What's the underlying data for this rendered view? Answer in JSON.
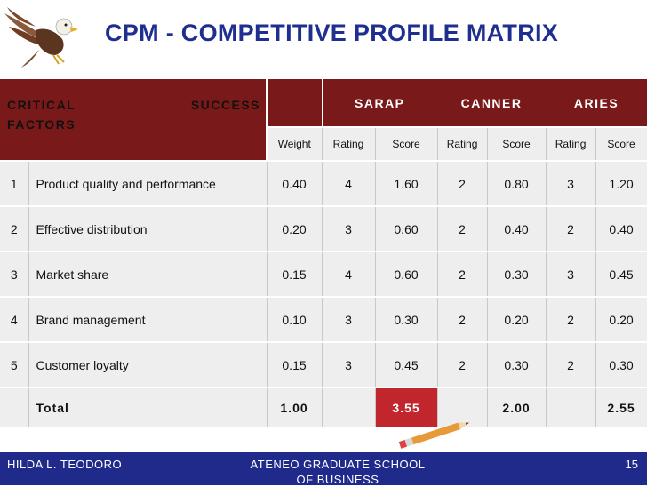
{
  "title": "CPM - COMPETITIVE PROFILE MATRIX",
  "header": {
    "critical_line1_a": "CRITICAL",
    "critical_line1_b": "SUCCESS",
    "critical_line2": "FACTORS",
    "companies": [
      "SARAP",
      "CANNER",
      "ARIES"
    ],
    "weight": "Weight",
    "rating": "Rating",
    "score": "Score"
  },
  "rows": [
    {
      "no": "1",
      "factor": "Product quality and performance",
      "weight": "0.40",
      "sarap_r": "4",
      "sarap_s": "1.60",
      "canner_r": "2",
      "canner_s": "0.80",
      "aries_r": "3",
      "aries_s": "1.20"
    },
    {
      "no": "2",
      "factor": "Effective distribution",
      "weight": "0.20",
      "sarap_r": "3",
      "sarap_s": "0.60",
      "canner_r": "2",
      "canner_s": "0.40",
      "aries_r": "2",
      "aries_s": "0.40"
    },
    {
      "no": "3",
      "factor": "Market share",
      "weight": "0.15",
      "sarap_r": "4",
      "sarap_s": "0.60",
      "canner_r": "2",
      "canner_s": "0.30",
      "aries_r": "3",
      "aries_s": "0.45"
    },
    {
      "no": "4",
      "factor": "Brand management",
      "weight": "0.10",
      "sarap_r": "3",
      "sarap_s": "0.30",
      "canner_r": "2",
      "canner_s": "0.20",
      "aries_r": "2",
      "aries_s": "0.20"
    },
    {
      "no": "5",
      "factor": "Customer loyalty",
      "weight": "0.15",
      "sarap_r": "3",
      "sarap_s": "0.45",
      "canner_r": "2",
      "canner_s": "0.30",
      "aries_r": "2",
      "aries_s": "0.30"
    }
  ],
  "total": {
    "label": "Total",
    "weight": "1.00",
    "sarap": "3.55",
    "canner": "2.00",
    "aries": "2.55"
  },
  "footer": {
    "left": "HILDA L. TEODORO",
    "mid_line1": "ATENEO GRADUATE SCHOOL",
    "mid_line2": "OF BUSINESS",
    "page": "15"
  },
  "colors": {
    "title": "#1f2f8f",
    "header_bg": "#7a1919",
    "highlight": "#c0262c",
    "footer_bg": "#1f2a8a"
  },
  "icons": {
    "logo": "eagle-icon",
    "decoration": "pencil-icon"
  }
}
